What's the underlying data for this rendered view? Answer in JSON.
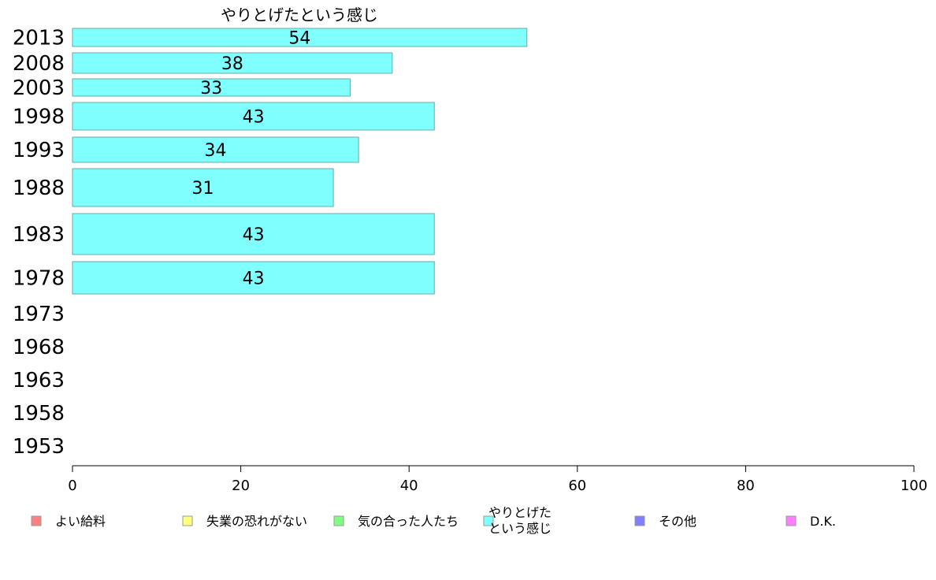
{
  "chart_data": {
    "type": "bar",
    "orientation": "horizontal",
    "title": "やりとげたという感じ",
    "categories": [
      "2013",
      "2008",
      "2003",
      "1998",
      "1993",
      "1988",
      "1983",
      "1978",
      "1973",
      "1968",
      "1963",
      "1958",
      "1953"
    ],
    "series": [
      {
        "name": "やりとげたという感じ",
        "color": "#80ffff",
        "values": [
          54,
          38,
          33,
          43,
          34,
          31,
          43,
          43,
          null,
          null,
          null,
          null,
          null
        ],
        "labels": [
          "54",
          "38",
          "33",
          "43",
          "34",
          "31",
          "43",
          "43",
          "",
          "",
          "",
          "",
          ""
        ]
      }
    ],
    "xlim": [
      0,
      100
    ],
    "xticks": [
      "0",
      "20",
      "40",
      "60",
      "80",
      "100"
    ],
    "grid": false,
    "legend_position": "bottom",
    "legend": [
      {
        "lines": [
          "よい給料"
        ],
        "color": "#ff8080"
      },
      {
        "lines": [
          "失業の恐れがない"
        ],
        "color": "#ffff80"
      },
      {
        "lines": [
          "気の合った人たち"
        ],
        "color": "#80ff80"
      },
      {
        "lines": [
          "やりとげた",
          "という感じ"
        ],
        "color": "#80ffff"
      },
      {
        "lines": [
          "その他"
        ],
        "color": "#8080ff"
      },
      {
        "lines": [
          "D.K."
        ],
        "color": "#ff80ff"
      }
    ]
  }
}
